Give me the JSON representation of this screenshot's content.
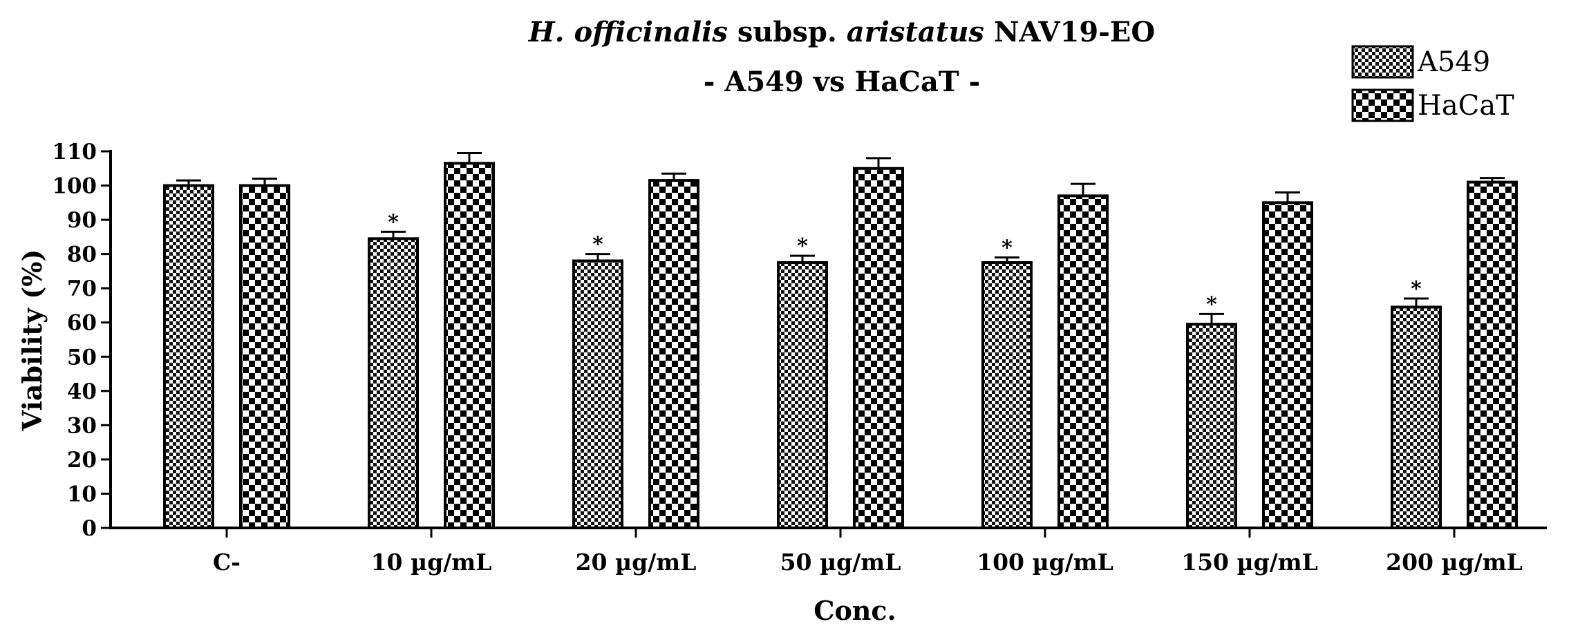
{
  "chart_data": {
    "type": "bar",
    "title": {
      "part1_italic": "H. officinalis",
      "part2": "subsp.",
      "part3_italic": "aristatus",
      "part4": "NAV19-EO"
    },
    "subtitle": "- A549 vs HaCaT -",
    "xlabel": "Conc.",
    "ylabel": "Viability (%)",
    "ylim": [
      0,
      110
    ],
    "yticks": [
      0,
      10,
      20,
      30,
      40,
      50,
      60,
      70,
      80,
      90,
      100,
      110
    ],
    "categories": [
      "C-",
      "10 µg/mL",
      "20 µg/mL",
      "50 µg/mL",
      "100 µg/mL",
      "150 µg/mL",
      "200 µg/mL"
    ],
    "series": [
      {
        "name": "A549",
        "pattern": "fine-checker",
        "values": [
          100,
          84.5,
          78,
          77.5,
          77.5,
          59.5,
          64.5
        ],
        "errors": [
          1.5,
          2,
          2,
          2,
          1.5,
          3,
          2.5
        ],
        "significance": [
          "",
          "*",
          "*",
          "*",
          "*",
          "*",
          "*"
        ]
      },
      {
        "name": "HaCaT",
        "pattern": "coarse-checker",
        "values": [
          100,
          106.5,
          101.5,
          105,
          97,
          95,
          101
        ],
        "errors": [
          2,
          3,
          2,
          3,
          3.5,
          3,
          1.2
        ],
        "significance": [
          "",
          "",
          "",
          "",
          "",
          "",
          ""
        ]
      }
    ],
    "legend_position": "top-right",
    "colors": {
      "ink": "#000000",
      "background": "#ffffff"
    }
  }
}
